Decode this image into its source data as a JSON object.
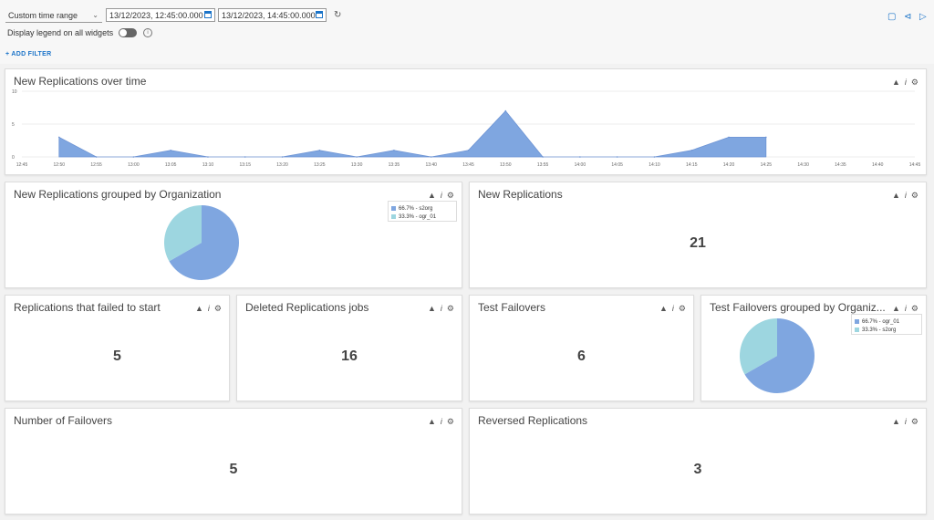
{
  "toolbar": {
    "time_range": "Custom time range",
    "start": "13/12/2023, 12:45:00.000",
    "end": "13/12/2023, 14:45:00.000",
    "legend_label": "Display legend on all widgets",
    "add_filter": "+ ADD FILTER"
  },
  "colors": {
    "blue": "#7fa6e0",
    "light": "#9dd6e0",
    "accent": "#1a73c8"
  },
  "panels": {
    "over_time": {
      "title": "New Replications over time"
    },
    "by_org": {
      "title": "New Replications grouped by Organization",
      "legend": [
        "66.7% - s2org",
        "33.3% - ogr_01"
      ]
    },
    "new_repl": {
      "title": "New Replications",
      "value": "21"
    },
    "failed": {
      "title": "Replications that failed to start",
      "value": "5"
    },
    "deleted": {
      "title": "Deleted Replications jobs",
      "value": "16"
    },
    "test_failovers": {
      "title": "Test Failovers",
      "value": "6"
    },
    "test_by_org": {
      "title": "Test Failovers grouped by Organiz...",
      "legend": [
        "66.7% - ogr_01",
        "33.3% - s2org"
      ]
    },
    "num_failovers": {
      "title": "Number of Failovers",
      "value": "5"
    },
    "reversed": {
      "title": "Reversed Replications",
      "value": "3"
    }
  },
  "chart_data": [
    {
      "type": "area",
      "title": "New Replications over time",
      "x": [
        "12:45",
        "12:50",
        "12:55",
        "13:00",
        "13:05",
        "13:10",
        "13:15",
        "13:20",
        "13:25",
        "13:30",
        "13:35",
        "13:40",
        "13:45",
        "13:50",
        "13:55",
        "14:00",
        "14:05",
        "14:10",
        "14:15",
        "14:20",
        "14:25",
        "14:30",
        "14:35",
        "14:40",
        "14:45"
      ],
      "values": [
        null,
        3,
        0,
        0,
        1,
        0,
        0,
        0,
        1,
        0,
        1,
        0,
        1,
        7,
        0,
        0,
        0,
        0,
        1,
        3,
        3,
        null,
        null,
        null,
        null
      ],
      "yticks": [
        "0",
        "5",
        "10"
      ],
      "ylim": [
        0,
        10
      ]
    },
    {
      "type": "pie",
      "labels": [
        "66.7% - s2org",
        "33.3% - ogr_01"
      ],
      "values": [
        66.7,
        33.3
      ]
    },
    {
      "type": "pie",
      "labels": [
        "66.7% - ogr_01",
        "33.3% - s2org"
      ],
      "values": [
        66.7,
        33.3
      ]
    }
  ]
}
